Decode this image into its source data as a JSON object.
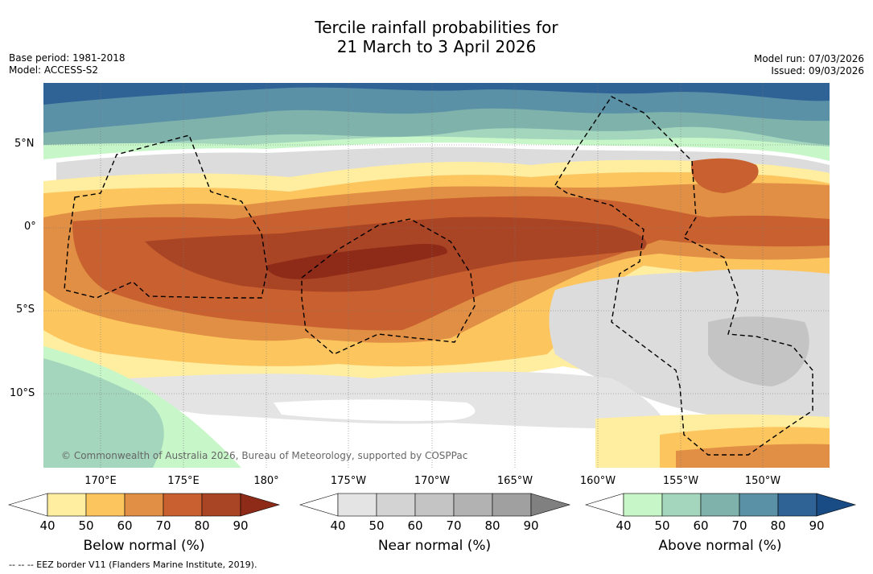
{
  "title": {
    "line1": "Tercile rainfall probabilities for",
    "line2": "21 March to 3 April 2026"
  },
  "meta_left": {
    "base_period": "Base period: 1981-2018",
    "model": "Model: ACCESS-S2"
  },
  "meta_right": {
    "model_run": "Model run: 07/03/2026",
    "issued": "Issued: 09/03/2026"
  },
  "map": {
    "lat_labels": [
      "5°N",
      "0°",
      "5°S",
      "10°S"
    ],
    "lon_labels": [
      "170°E",
      "175°E",
      "180°",
      "175°W",
      "170°W",
      "165°W",
      "160°W",
      "155°W",
      "150°W"
    ],
    "copyright": "© Commonwealth of Australia 2026, Bureau of Meteorology, supported by COSPPac"
  },
  "colorbars": [
    {
      "title": "Below normal (%)",
      "ticks": [
        "40",
        "50",
        "60",
        "70",
        "80",
        "90"
      ],
      "colors": [
        "#ffffff",
        "#ffeda0",
        "#fdc55e",
        "#e08f44",
        "#c8602f",
        "#a94424",
        "#8e2a18"
      ]
    },
    {
      "title": "Near normal (%)",
      "ticks": [
        "40",
        "50",
        "60",
        "70",
        "80",
        "90"
      ],
      "colors": [
        "#ffffff",
        "#e4e4e4",
        "#d3d3d3",
        "#c4c4c4",
        "#b2b2b2",
        "#a0a0a0",
        "#808080"
      ]
    },
    {
      "title": "Above normal (%)",
      "ticks": [
        "40",
        "50",
        "60",
        "70",
        "80",
        "90"
      ],
      "colors": [
        "#ffffff",
        "#c7f7c9",
        "#a3d6bc",
        "#7fb2ab",
        "#5b91a6",
        "#2f6396",
        "#194b85"
      ]
    }
  ],
  "legend": {
    "eez_note": "--  --  -- EEZ border V11 (Flanders Marine Institute, 2019)."
  }
}
